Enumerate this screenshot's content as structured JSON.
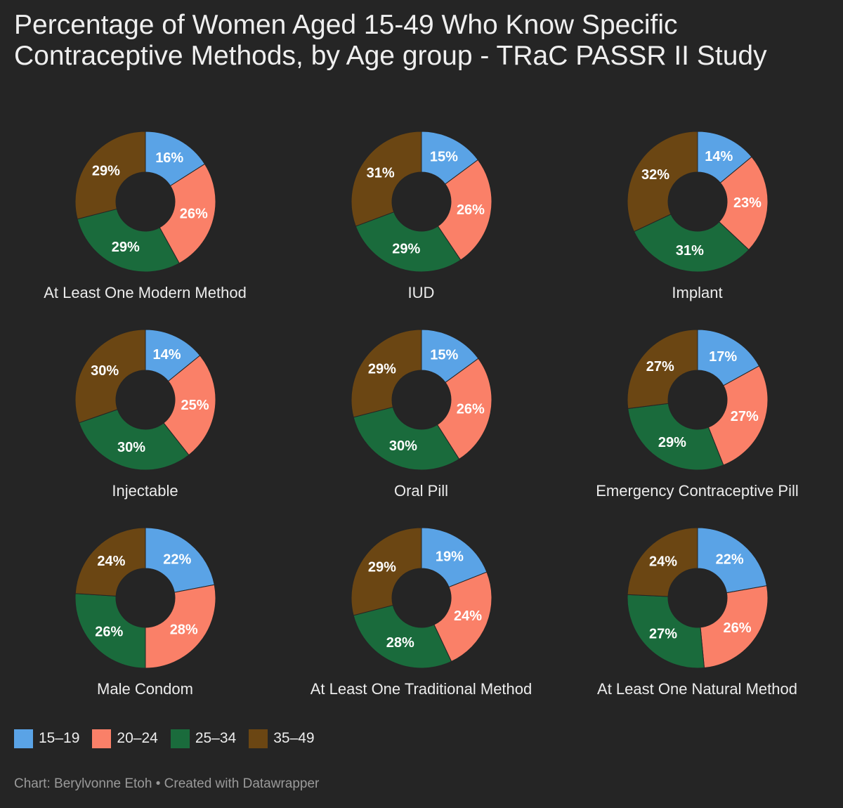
{
  "title": "Percentage of Women Aged 15-49 Who Know Specific Contraceptive Methods, by Age group - TRaC PASSR II Study",
  "footer": {
    "chart_credit": "Chart: Berylvonne Etoh",
    "separator": "•",
    "created_with": "Created with Datawrapper"
  },
  "legend": [
    {
      "label": "15–19",
      "color": "#5aa3e6"
    },
    {
      "label": "20–24",
      "color": "#fa8068"
    },
    {
      "label": "25–34",
      "color": "#1a6b3c"
    },
    {
      "label": "35–49",
      "color": "#6b4613"
    }
  ],
  "chart_data": {
    "type": "pie",
    "variant": "donut",
    "series_names": [
      "15–19",
      "20–24",
      "25–34",
      "35–49"
    ],
    "colors": [
      "#5aa3e6",
      "#fa8068",
      "#1a6b3c",
      "#6b4613"
    ],
    "unit": "%",
    "charts": [
      {
        "label": "At Least One Modern Method",
        "values": [
          16,
          26,
          29,
          29
        ]
      },
      {
        "label": "IUD",
        "values": [
          15,
          26,
          29,
          31
        ]
      },
      {
        "label": "Implant",
        "values": [
          14,
          23,
          31,
          32
        ]
      },
      {
        "label": "Injectable",
        "values": [
          14,
          25,
          30,
          30
        ]
      },
      {
        "label": "Oral Pill",
        "values": [
          15,
          26,
          30,
          29
        ]
      },
      {
        "label": "Emergency Contraceptive Pill",
        "values": [
          17,
          27,
          29,
          27
        ]
      },
      {
        "label": "Male Condom",
        "values": [
          22,
          28,
          26,
          24
        ]
      },
      {
        "label": "At Least One Traditional Method",
        "values": [
          19,
          24,
          28,
          29
        ]
      },
      {
        "label": "At Least One Natural Method",
        "values": [
          22,
          26,
          27,
          24
        ]
      }
    ]
  }
}
